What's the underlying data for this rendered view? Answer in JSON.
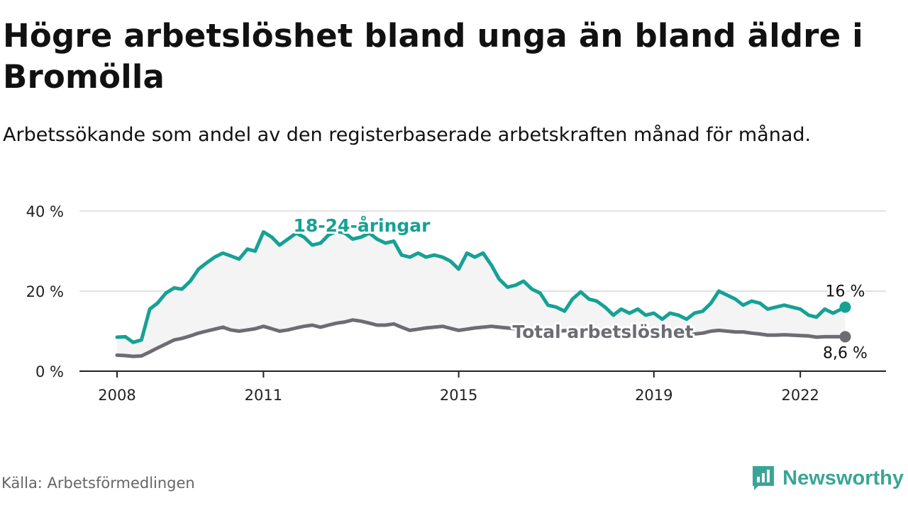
{
  "title": "Högre arbetslöshet bland unga än bland äldre i Bromölla",
  "subtitle": "Arbetssökande som andel av den registerbaserade arbetskraften månad för månad.",
  "source": "Källa: Arbetsförmedlingen",
  "brand": "Newsworthy",
  "colors": {
    "youth": "#16a195",
    "total": "#6e6c73",
    "band": "#f4f4f4",
    "grid": "#d9d9d9",
    "axis": "#222222"
  },
  "chart_data": {
    "type": "line",
    "title": "Högre arbetslöshet bland unga än bland äldre i Bromölla",
    "xlabel": "",
    "ylabel": "",
    "x_range": [
      2008,
      2023
    ],
    "ylim": [
      0,
      40
    ],
    "y_ticks": [
      {
        "value": 0,
        "label": "0 %"
      },
      {
        "value": 20,
        "label": "20 %"
      },
      {
        "value": 40,
        "label": "40 %"
      }
    ],
    "x_ticks": [
      {
        "value": 2008,
        "label": "2008"
      },
      {
        "value": 2011,
        "label": "2011"
      },
      {
        "value": 2015,
        "label": "2015"
      },
      {
        "value": 2019,
        "label": "2019"
      },
      {
        "value": 2022,
        "label": "2022"
      }
    ],
    "grid": "horizontal",
    "series": [
      {
        "name": "18-24-åringar",
        "label": "18-24-åringar",
        "end_label": "16 %",
        "x": [
          2008.0,
          2008.17,
          2008.33,
          2008.5,
          2008.67,
          2008.83,
          2009.0,
          2009.17,
          2009.33,
          2009.5,
          2009.67,
          2009.83,
          2010.0,
          2010.17,
          2010.33,
          2010.5,
          2010.67,
          2010.83,
          2011.0,
          2011.17,
          2011.33,
          2011.5,
          2011.67,
          2011.83,
          2012.0,
          2012.17,
          2012.33,
          2012.5,
          2012.67,
          2012.83,
          2013.0,
          2013.17,
          2013.33,
          2013.5,
          2013.67,
          2013.83,
          2014.0,
          2014.17,
          2014.33,
          2014.5,
          2014.67,
          2014.83,
          2015.0,
          2015.17,
          2015.33,
          2015.5,
          2015.67,
          2015.83,
          2016.0,
          2016.17,
          2016.33,
          2016.5,
          2016.67,
          2016.83,
          2017.0,
          2017.17,
          2017.33,
          2017.5,
          2017.67,
          2017.83,
          2018.0,
          2018.17,
          2018.33,
          2018.5,
          2018.67,
          2018.83,
          2019.0,
          2019.17,
          2019.33,
          2019.5,
          2019.67,
          2019.83,
          2020.0,
          2020.17,
          2020.33,
          2020.5,
          2020.67,
          2020.83,
          2021.0,
          2021.17,
          2021.33,
          2021.5,
          2021.67,
          2021.83,
          2022.0,
          2022.17,
          2022.33,
          2022.5,
          2022.67,
          2022.92
        ],
        "values": [
          8.5,
          8.6,
          7.2,
          7.8,
          15.5,
          17.0,
          19.5,
          20.8,
          20.5,
          22.5,
          25.5,
          27.0,
          28.5,
          29.5,
          28.8,
          28.0,
          30.5,
          30.0,
          34.8,
          33.5,
          31.5,
          33.0,
          34.5,
          33.5,
          31.5,
          32.0,
          34.0,
          35.0,
          34.5,
          33.0,
          33.5,
          34.5,
          33.0,
          32.0,
          32.5,
          29.0,
          28.5,
          29.5,
          28.5,
          29.0,
          28.5,
          27.5,
          25.5,
          29.5,
          28.5,
          29.5,
          26.5,
          23.0,
          21.0,
          21.5,
          22.5,
          20.5,
          19.5,
          16.5,
          16.0,
          15.0,
          18.0,
          19.8,
          18.0,
          17.5,
          16.0,
          14.0,
          15.5,
          14.5,
          15.5,
          14.0,
          14.5,
          13.0,
          14.5,
          14.0,
          13.0,
          14.5,
          15.0,
          17.0,
          20.0,
          19.0,
          18.0,
          16.5,
          17.5,
          17.0,
          15.5,
          16.0,
          16.5,
          16.0,
          15.5,
          14.0,
          13.5,
          15.5,
          14.5,
          16.0
        ]
      },
      {
        "name": "Total arbetslöshet",
        "label": "Total arbetslöshet",
        "end_label": "8,6 %",
        "x": [
          2008.0,
          2008.17,
          2008.33,
          2008.5,
          2008.67,
          2008.83,
          2009.0,
          2009.17,
          2009.33,
          2009.5,
          2009.67,
          2009.83,
          2010.0,
          2010.17,
          2010.33,
          2010.5,
          2010.67,
          2010.83,
          2011.0,
          2011.17,
          2011.33,
          2011.5,
          2011.67,
          2011.83,
          2012.0,
          2012.17,
          2012.33,
          2012.5,
          2012.67,
          2012.83,
          2013.0,
          2013.17,
          2013.33,
          2013.5,
          2013.67,
          2013.83,
          2014.0,
          2014.17,
          2014.33,
          2014.5,
          2014.67,
          2014.83,
          2015.0,
          2015.17,
          2015.33,
          2015.5,
          2015.67,
          2015.83,
          2016.0,
          2016.17,
          2016.33,
          2016.5,
          2016.67,
          2016.83,
          2017.0,
          2017.17,
          2017.33,
          2017.5,
          2017.67,
          2017.83,
          2018.0,
          2018.17,
          2018.33,
          2018.5,
          2018.67,
          2018.83,
          2019.0,
          2019.17,
          2019.33,
          2019.5,
          2019.67,
          2019.83,
          2020.0,
          2020.17,
          2020.33,
          2020.5,
          2020.67,
          2020.83,
          2021.0,
          2021.17,
          2021.33,
          2021.5,
          2021.67,
          2021.83,
          2022.0,
          2022.17,
          2022.33,
          2022.5,
          2022.67,
          2022.92
        ],
        "values": [
          4.0,
          3.9,
          3.7,
          3.8,
          4.8,
          5.8,
          6.8,
          7.8,
          8.2,
          8.8,
          9.5,
          10.0,
          10.5,
          11.0,
          10.3,
          10.0,
          10.3,
          10.6,
          11.2,
          10.6,
          10.0,
          10.3,
          10.8,
          11.2,
          11.5,
          11.0,
          11.5,
          12.0,
          12.3,
          12.8,
          12.5,
          12.0,
          11.5,
          11.5,
          11.8,
          11.0,
          10.2,
          10.5,
          10.8,
          11.0,
          11.2,
          10.7,
          10.2,
          10.5,
          10.8,
          11.0,
          11.2,
          11.0,
          10.8,
          10.6,
          10.5,
          10.6,
          10.5,
          10.2,
          10.0,
          10.1,
          10.2,
          10.3,
          10.0,
          9.9,
          9.8,
          9.7,
          9.6,
          9.4,
          9.5,
          9.8,
          9.6,
          9.2,
          9.5,
          9.7,
          9.5,
          9.3,
          9.5,
          10.0,
          10.2,
          10.0,
          9.8,
          9.8,
          9.5,
          9.3,
          9.0,
          9.0,
          9.1,
          9.0,
          8.9,
          8.8,
          8.5,
          8.6,
          8.6,
          8.6
        ]
      }
    ]
  }
}
